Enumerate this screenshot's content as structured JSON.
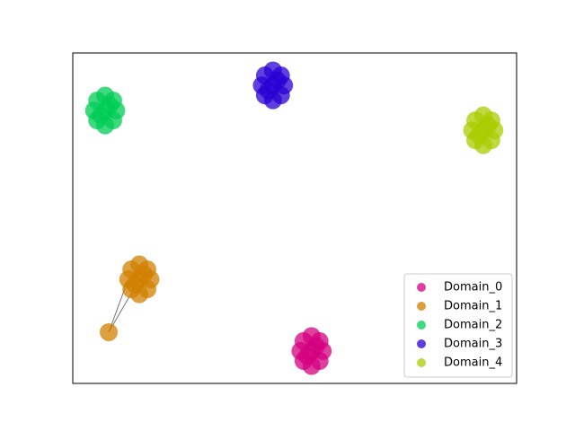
{
  "chart_data": {
    "type": "scatter",
    "xlim": [
      0,
      1
    ],
    "ylim": [
      0,
      1
    ],
    "legend": "lower right",
    "series": [
      {
        "name": "Domain_0",
        "color": "#d4007f",
        "x": [
          0.538,
          0.563,
          0.513,
          0.538,
          0.538,
          0.556,
          0.52,
          0.556,
          0.52,
          0.548,
          0.528
        ],
        "y": [
          0.098,
          0.098,
          0.098,
          0.143,
          0.053,
          0.128,
          0.128,
          0.068,
          0.068,
          0.113,
          0.083
        ]
      },
      {
        "name": "Domain_1",
        "color": "#d08000",
        "x": [
          0.15,
          0.175,
          0.125,
          0.15,
          0.15,
          0.168,
          0.132,
          0.168,
          0.132,
          0.16,
          0.14,
          0.081
        ],
        "y": [
          0.315,
          0.315,
          0.315,
          0.36,
          0.27,
          0.345,
          0.345,
          0.285,
          0.285,
          0.33,
          0.3,
          0.155
        ]
      },
      {
        "name": "Domain_2",
        "color": "#00cc55",
        "x": [
          0.073,
          0.098,
          0.048,
          0.073,
          0.073,
          0.091,
          0.055,
          0.091,
          0.055,
          0.083,
          0.063
        ],
        "y": [
          0.826,
          0.826,
          0.826,
          0.871,
          0.781,
          0.856,
          0.856,
          0.796,
          0.796,
          0.841,
          0.811
        ]
      },
      {
        "name": "Domain_3",
        "color": "#2a00d4",
        "x": [
          0.451,
          0.476,
          0.426,
          0.451,
          0.451,
          0.469,
          0.433,
          0.469,
          0.433,
          0.461,
          0.441
        ],
        "y": [
          0.902,
          0.902,
          0.902,
          0.947,
          0.857,
          0.932,
          0.932,
          0.872,
          0.872,
          0.917,
          0.887
        ]
      },
      {
        "name": "Domain_4",
        "color": "#aacc00",
        "x": [
          0.925,
          0.95,
          0.9,
          0.925,
          0.925,
          0.943,
          0.907,
          0.943,
          0.907,
          0.935,
          0.915
        ],
        "y": [
          0.766,
          0.766,
          0.766,
          0.811,
          0.721,
          0.796,
          0.796,
          0.736,
          0.736,
          0.781,
          0.751
        ]
      }
    ]
  }
}
